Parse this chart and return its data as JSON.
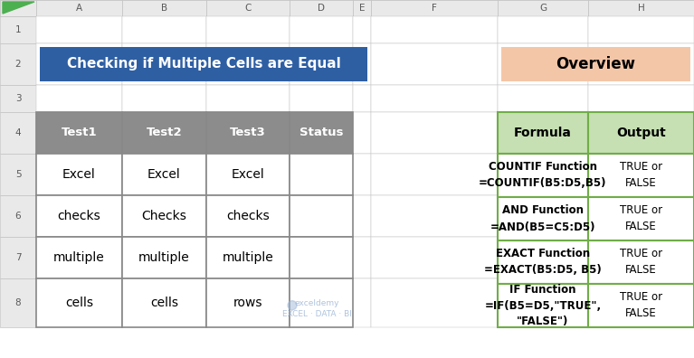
{
  "title": "Checking if Multiple Cells are Equal",
  "overview_title": "Overview",
  "col_headers_left": [
    "Test1",
    "Test2",
    "Test3",
    "Status"
  ],
  "left_table_data": [
    [
      "Excel",
      "Excel",
      "Excel",
      ""
    ],
    [
      "checks",
      "Checks",
      "checks",
      ""
    ],
    [
      "multiple",
      "multiple",
      "multiple",
      ""
    ],
    [
      "cells",
      "cells",
      "rows",
      ""
    ]
  ],
  "col_headers_right": [
    "Formula",
    "Output"
  ],
  "right_table_data": [
    [
      "COUNTIF Function\n=COUNTIF(B5:D5,B5)",
      "TRUE or\nFALSE"
    ],
    [
      "AND Function\n=AND(B5=C5:D5)",
      "TRUE or\nFALSE"
    ],
    [
      "EXACT Function\n=EXACT(B5:D5, B5)",
      "TRUE or\nFALSE"
    ],
    [
      "IF Function\n=IF(B5=D5,\"TRUE\",\n\"FALSE\")",
      "TRUE or\nFALSE"
    ]
  ],
  "excel_col_labels": [
    "A",
    "B",
    "C",
    "D",
    "E",
    "F",
    "G",
    "H"
  ],
  "excel_row_labels": [
    "1",
    "2",
    "3",
    "4",
    "5",
    "6",
    "7",
    "8"
  ],
  "title_bg": "#2E5FA3",
  "title_fg": "#FFFFFF",
  "overview_bg": "#F4C6A8",
  "overview_fg": "#000000",
  "left_header_bg": "#8C8C8C",
  "left_header_fg": "#FFFFFF",
  "right_header_bg": "#C6E0B4",
  "right_header_fg": "#000000",
  "cell_bg": "#FFFFFF",
  "grid_color": "#BBBBBB",
  "table_border_color": "#888888",
  "right_border_color": "#70AD47",
  "excel_header_bg": "#E9E9E9",
  "excel_bg": "#FFFFFF",
  "row_num_color": "#595959",
  "col_lbl_color": "#595959",
  "watermark_text": "exceldemy\nEXCEL · DATA · BI",
  "watermark_color": "#A0B8D8"
}
